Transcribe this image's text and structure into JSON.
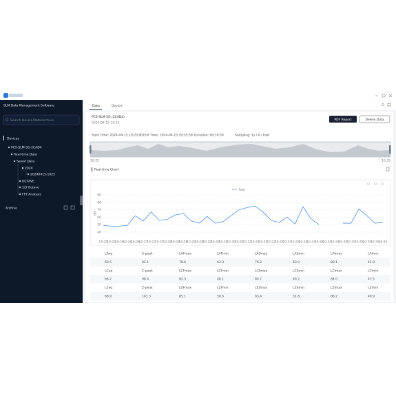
{
  "app": {
    "title": "SLM Data Management Software",
    "search_placeholder": "Search Device/Data/Archive",
    "devices_label": "Devices",
    "tree": [
      "PCS-SLM-5G-2CAD4",
      "Real-time Data",
      "Saved Data",
      "2024",
      "20240415-1025",
      "OCTAVE",
      "1/3 Octave",
      "FFT Analysis"
    ],
    "archive_label": "Archive"
  },
  "tabs": [
    "Data",
    "Device"
  ],
  "header": {
    "title": "PCS-SLM-5G (2CAD4)",
    "subtitle": "2024-04-15 10:25",
    "buttons": [
      "PDF Report",
      "Delete Data"
    ]
  },
  "info": [
    "Start Time: 2024-04-15 10:25:00",
    "End Time: 2024-04-15 10:35:59",
    "Duration: 00:10:59",
    "Sampling: 1s / A / Fast"
  ],
  "overview_labels": [
    "10:25",
    "10:35"
  ],
  "section_title": "Real-time Chart",
  "chart_data": {
    "type": "line",
    "y_label": "dB",
    "categories": [
      "10:25",
      "10:25",
      "10:26",
      "10:26",
      "10:26",
      "10:27",
      "10:27",
      "10:27",
      "10:28",
      "10:28",
      "10:28",
      "10:29",
      "10:29",
      "10:29",
      "10:30",
      "10:30",
      "10:30",
      "10:31",
      "10:31",
      "10:31",
      "10:32",
      "10:32",
      "10:32",
      "10:33",
      "10:33",
      "10:33",
      "10:34",
      "10:34",
      "10:34",
      "10:34",
      "10:35",
      "10:35",
      "10:35",
      "10:35",
      "10:35",
      "10:35"
    ],
    "series": [
      {
        "name": "Leq",
        "color": "#4a8ee6",
        "values": [
          49,
          48,
          48,
          49,
          62,
          55,
          67,
          56,
          57,
          63,
          65,
          55,
          52,
          61,
          52,
          54,
          62,
          70,
          73,
          75,
          67,
          56,
          53,
          60,
          51,
          74,
          58,
          50,
          null,
          null,
          52,
          52,
          71,
          62,
          52,
          53
        ]
      }
    ],
    "ylim": [
      40,
      90
    ],
    "yticks": [
      40,
      50,
      60,
      70,
      80,
      90
    ],
    "grid": true
  },
  "table": {
    "rows": [
      [
        "LAeq",
        "A-peak",
        "LAFmax",
        "LAFmin",
        "LASmax",
        "LASmin",
        "LAImax",
        "LAImin"
      ],
      [
        "60.5",
        "92.1",
        "78.6",
        "42.3",
        "76.2",
        "43.0",
        "80.1",
        "41.8"
      ],
      [
        "LCeq",
        "C-peak",
        "LCFmax",
        "LCFmin",
        "LCSmax",
        "LCSmin",
        "LCImax",
        "LCImin"
      ],
      [
        "66.2",
        "98.4",
        "82.3",
        "48.1",
        "80.7",
        "49.2",
        "84.0",
        "47.5"
      ],
      [
        "LZeq",
        "Z-peak",
        "LZFmax",
        "LZFmin",
        "LZSmax",
        "LZSmin",
        "LZImax",
        "LZImin"
      ],
      [
        "68.9",
        "101.3",
        "85.1",
        "50.6",
        "83.4",
        "51.8",
        "86.2",
        "49.9"
      ]
    ]
  }
}
